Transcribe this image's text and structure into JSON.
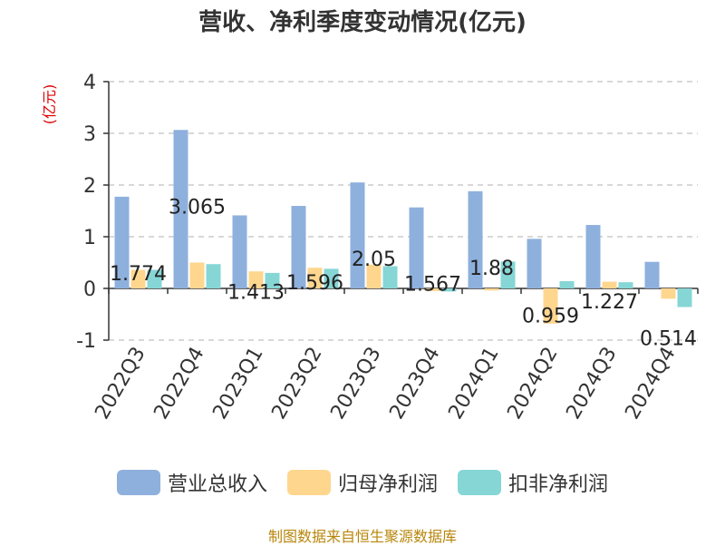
{
  "title": "营收、净利季度变动情况(亿元)",
  "footer": "制图数据来自恒生聚源数据库",
  "colors": {
    "revenue": "#8eb0dd",
    "net_profit": "#ffd68e",
    "deducted_net_profit": "#86d6d6"
  },
  "chart_data": {
    "type": "bar",
    "title": "营收、净利季度变动情况(亿元)",
    "ylabel": "(亿元)",
    "xlabel": "",
    "ylim": [
      -1,
      4
    ],
    "yticks": [
      4,
      3,
      2,
      1,
      0,
      -1
    ],
    "grid": true,
    "legend_position": "bottom",
    "categories": [
      "2022Q3",
      "2022Q4",
      "2023Q1",
      "2023Q2",
      "2023Q3",
      "2023Q4",
      "2024Q1",
      "2024Q2",
      "2024Q3",
      "2024Q4"
    ],
    "series": [
      {
        "name": "营业总收入",
        "values": [
          1.774,
          3.065,
          1.413,
          1.596,
          2.05,
          1.567,
          1.88,
          0.959,
          1.227,
          0.514
        ],
        "labels": [
          "1.774",
          "3.065",
          "1.413",
          "1.596",
          "2.05",
          "1.567",
          "1.88",
          "0.959",
          "1.227",
          "0.514"
        ]
      },
      {
        "name": "归母净利润",
        "values": [
          0.36,
          0.5,
          0.33,
          0.4,
          0.46,
          -0.05,
          -0.04,
          -0.68,
          0.13,
          -0.2
        ]
      },
      {
        "name": "扣非净利润",
        "values": [
          0.36,
          0.47,
          0.3,
          0.38,
          0.43,
          -0.06,
          0.52,
          0.14,
          0.12,
          -0.36
        ]
      }
    ]
  }
}
